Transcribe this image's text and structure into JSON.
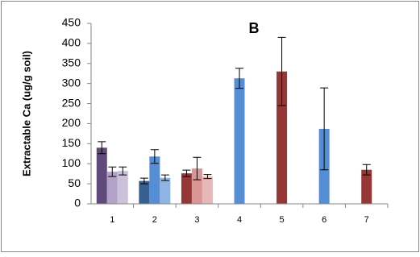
{
  "chart_data": {
    "type": "bar",
    "title": "B",
    "y_label": "Extractable Ca (ug/g soil)",
    "categories": [
      "1",
      "2",
      "3",
      "4",
      "5",
      "6",
      "7"
    ],
    "groups": [
      [
        {
          "value": 140,
          "error": 15,
          "color": "#604a7b"
        },
        {
          "value": 80,
          "error": 12,
          "color": "#b3a2c7"
        },
        {
          "value": 82,
          "error": 10,
          "color": "#ccc1da"
        }
      ],
      [
        {
          "value": 57,
          "error": 7,
          "color": "#376092"
        },
        {
          "value": 118,
          "error": 17,
          "color": "#558ed5"
        },
        {
          "value": 65,
          "error": 7,
          "color": "#8eb4e3"
        }
      ],
      [
        {
          "value": 76,
          "error": 8,
          "color": "#953735"
        },
        {
          "value": 88,
          "error": 28,
          "color": "#d99694"
        },
        {
          "value": 68,
          "error": 5,
          "color": "#e6b9b8"
        }
      ],
      [
        {
          "value": 313,
          "error": 25,
          "color": "#558ed5"
        }
      ],
      [
        {
          "value": 330,
          "error": 85,
          "color": "#953735"
        }
      ],
      [
        {
          "value": 187,
          "error": 102,
          "color": "#558ed5"
        }
      ],
      [
        {
          "value": 85,
          "error": 13,
          "color": "#953735"
        }
      ]
    ],
    "ylim": [
      0,
      450
    ],
    "yticks": [
      0,
      50,
      100,
      150,
      200,
      250,
      300,
      350,
      400,
      450
    ]
  }
}
